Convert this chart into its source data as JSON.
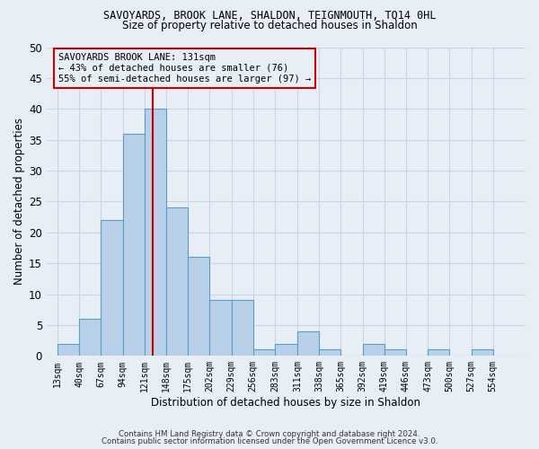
{
  "title": "SAVOYARDS, BROOK LANE, SHALDON, TEIGNMOUTH, TQ14 0HL",
  "subtitle": "Size of property relative to detached houses in Shaldon",
  "xlabel": "Distribution of detached houses by size in Shaldon",
  "ylabel": "Number of detached properties",
  "footnote1": "Contains HM Land Registry data © Crown copyright and database right 2024.",
  "footnote2": "Contains public sector information licensed under the Open Government Licence v3.0.",
  "bar_color": "#b8d0e8",
  "bar_edge_color": "#5a9ec8",
  "grid_color": "#c8d4e8",
  "annotation_box_color": "#cc0000",
  "vline_color": "#cc0000",
  "annotation_text": "SAVOYARDS BROOK LANE: 131sqm\n← 43% of detached houses are smaller (76)\n55% of semi-detached houses are larger (97) →",
  "property_size": 131,
  "bin_edges": [
    13,
    40,
    67,
    94,
    121,
    148,
    175,
    202,
    229,
    256,
    283,
    311,
    338,
    365,
    392,
    419,
    446,
    473,
    500,
    527,
    554
  ],
  "bin_labels": [
    "13sqm",
    "40sqm",
    "67sqm",
    "94sqm",
    "121sqm",
    "148sqm",
    "175sqm",
    "202sqm",
    "229sqm",
    "256sqm",
    "283sqm",
    "311sqm",
    "338sqm",
    "365sqm",
    "392sqm",
    "419sqm",
    "446sqm",
    "473sqm",
    "500sqm",
    "527sqm",
    "554sqm"
  ],
  "bar_heights": [
    2,
    6,
    22,
    36,
    40,
    24,
    16,
    9,
    9,
    1,
    2,
    4,
    1,
    0,
    2,
    1,
    0,
    1,
    0,
    1,
    0
  ],
  "ylim": [
    0,
    50
  ],
  "yticks": [
    0,
    5,
    10,
    15,
    20,
    25,
    30,
    35,
    40,
    45,
    50
  ],
  "background_color": "#e8eef5"
}
